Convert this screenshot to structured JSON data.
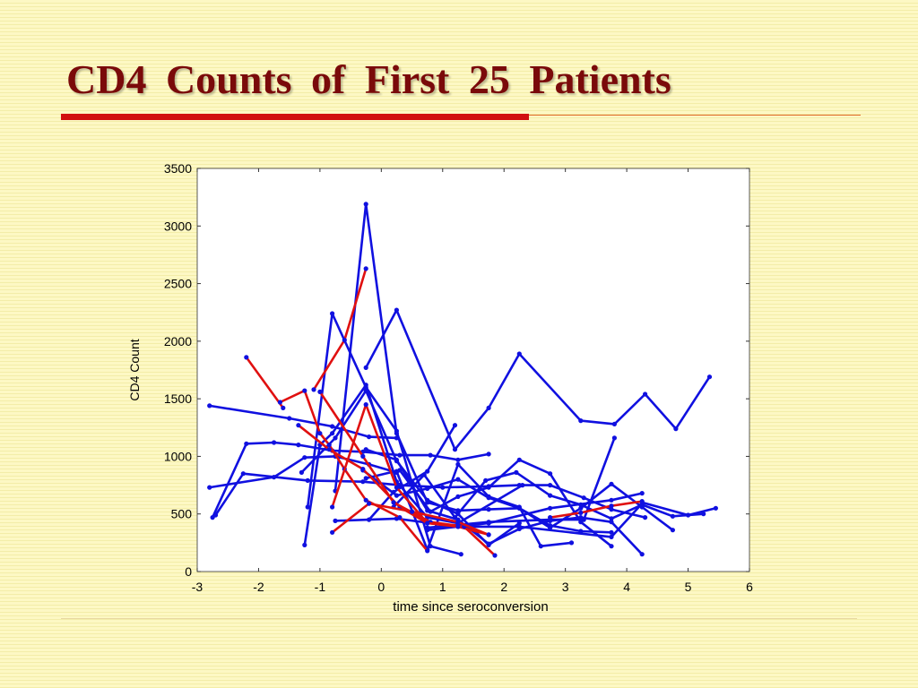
{
  "slide": {
    "title": "CD4 Counts of First 25 Patients"
  },
  "colors": {
    "title": "#7a0a0a",
    "accent_rule": "#d11010",
    "blue_series": "#1010e0",
    "red_series": "#e01010"
  },
  "chart_data": {
    "type": "line",
    "title": "",
    "xlabel": "time since seroconversion",
    "ylabel": "CD4 Count",
    "xlim": [
      -3,
      6
    ],
    "ylim": [
      0,
      3500
    ],
    "xticks": [
      "-3",
      "-2",
      "-1",
      "0",
      "1",
      "2",
      "3",
      "4",
      "5",
      "6"
    ],
    "yticks": [
      "0",
      "500",
      "1000",
      "1500",
      "2000",
      "2500",
      "3000",
      "3500"
    ],
    "grid": false,
    "legend": "none",
    "series": [
      {
        "color": "#e01010",
        "points": [
          [
            -2.2,
            1860
          ],
          [
            -1.6,
            1420
          ]
        ]
      },
      {
        "color": "#e01010",
        "points": [
          [
            -1.65,
            1470
          ],
          [
            -1.25,
            1570
          ],
          [
            -1.0,
            1200
          ],
          [
            -0.85,
            1100
          ],
          [
            -0.6,
            890
          ],
          [
            -0.25,
            620
          ],
          [
            0.3,
            470
          ],
          [
            0.75,
            180
          ]
        ]
      },
      {
        "color": "#e01010",
        "points": [
          [
            -1.35,
            1270
          ],
          [
            -0.85,
            1060
          ],
          [
            -0.3,
            890
          ],
          [
            0.3,
            560
          ],
          [
            0.75,
            420
          ],
          [
            1.25,
            390
          ],
          [
            1.75,
            320
          ]
        ]
      },
      {
        "color": "#e01010",
        "points": [
          [
            -1.0,
            1560
          ],
          [
            -0.3,
            1000
          ],
          [
            0.2,
            600
          ],
          [
            0.8,
            430
          ],
          [
            1.35,
            390
          ],
          [
            1.85,
            140
          ]
        ]
      },
      {
        "color": "#e01010",
        "points": [
          [
            -0.8,
            560
          ],
          [
            -0.25,
            1450
          ],
          [
            0.25,
            730
          ],
          [
            0.75,
            420
          ],
          [
            1.25,
            400
          ]
        ]
      },
      {
        "color": "#e01010",
        "points": [
          [
            -0.8,
            340
          ],
          [
            -0.2,
            590
          ],
          [
            0.5,
            520
          ],
          [
            1.25,
            430
          ],
          [
            1.75,
            320
          ]
        ]
      },
      {
        "color": "#e01010",
        "points": [
          [
            -1.1,
            1580
          ],
          [
            -0.6,
            2010
          ],
          [
            -0.25,
            2630
          ]
        ]
      },
      {
        "color": "#e01010",
        "points": [
          [
            2.75,
            470
          ],
          [
            3.25,
            510
          ],
          [
            3.75,
            570
          ],
          [
            4.25,
            610
          ]
        ]
      },
      {
        "color": "#1010e0",
        "points": [
          [
            -2.8,
            1440
          ],
          [
            -1.5,
            1330
          ],
          [
            -0.8,
            1260
          ],
          [
            -0.2,
            1170
          ],
          [
            0.25,
            1160
          ]
        ]
      },
      {
        "color": "#1010e0",
        "points": [
          [
            -2.75,
            470
          ],
          [
            -2.2,
            1110
          ],
          [
            -1.75,
            1120
          ],
          [
            -1.35,
            1100
          ],
          [
            -0.8,
            1050
          ],
          [
            -0.3,
            1040
          ],
          [
            0.3,
            1010
          ],
          [
            0.8,
            1010
          ],
          [
            1.25,
            970
          ],
          [
            1.75,
            1020
          ]
        ]
      },
      {
        "color": "#1010e0",
        "points": [
          [
            -2.8,
            730
          ],
          [
            -1.75,
            820
          ],
          [
            -1.25,
            990
          ],
          [
            -0.75,
            1000
          ],
          [
            -0.2,
            930
          ],
          [
            0.25,
            860
          ]
        ]
      },
      {
        "color": "#1010e0",
        "points": [
          [
            -2.7,
            490
          ],
          [
            -2.25,
            850
          ],
          [
            -1.2,
            790
          ],
          [
            -0.3,
            780
          ],
          [
            0.3,
            750
          ],
          [
            1.0,
            730
          ],
          [
            1.75,
            740
          ],
          [
            2.25,
            750
          ]
        ]
      },
      {
        "color": "#1010e0",
        "points": [
          [
            -1.2,
            560
          ],
          [
            -0.8,
            2240
          ],
          [
            -0.25,
            1600
          ],
          [
            0.25,
            1220
          ],
          [
            0.8,
            220
          ],
          [
            1.3,
            150
          ]
        ]
      },
      {
        "color": "#1010e0",
        "points": [
          [
            -1.3,
            860
          ],
          [
            -0.75,
            1160
          ],
          [
            -0.25,
            1570
          ],
          [
            0.25,
            960
          ],
          [
            0.75,
            620
          ],
          [
            1.25,
            500
          ],
          [
            1.75,
            230
          ],
          [
            2.25,
            420
          ]
        ]
      },
      {
        "color": "#1010e0",
        "points": [
          [
            -1.25,
            230
          ],
          [
            -1.0,
            1100
          ],
          [
            -0.8,
            1200
          ],
          [
            -0.25,
            1620
          ],
          [
            0.25,
            780
          ],
          [
            0.75,
            470
          ],
          [
            1.25,
            420
          ],
          [
            2.3,
            750
          ],
          [
            2.75,
            750
          ],
          [
            3.3,
            640
          ],
          [
            3.75,
            540
          ],
          [
            4.3,
            470
          ]
        ]
      },
      {
        "color": "#1010e0",
        "points": [
          [
            -0.75,
            700
          ],
          [
            -0.25,
            3190
          ],
          [
            0.25,
            1200
          ],
          [
            0.75,
            600
          ],
          [
            1.25,
            530
          ],
          [
            1.75,
            540
          ],
          [
            2.25,
            550
          ],
          [
            2.75,
            400
          ],
          [
            3.25,
            350
          ],
          [
            3.75,
            340
          ]
        ]
      },
      {
        "color": "#1010e0",
        "points": [
          [
            -0.25,
            1770
          ],
          [
            0.25,
            2270
          ],
          [
            1.2,
            1060
          ],
          [
            1.75,
            1420
          ],
          [
            2.25,
            1890
          ],
          [
            3.25,
            1310
          ],
          [
            3.8,
            1280
          ],
          [
            4.3,
            1540
          ],
          [
            4.8,
            1240
          ],
          [
            5.35,
            1690
          ]
        ]
      },
      {
        "color": "#1010e0",
        "points": [
          [
            -0.25,
            1060
          ],
          [
            0.25,
            970
          ],
          [
            0.75,
            530
          ],
          [
            1.25,
            450
          ],
          [
            1.75,
            240
          ],
          [
            2.25,
            370
          ],
          [
            2.75,
            440
          ],
          [
            3.25,
            470
          ],
          [
            3.75,
            430
          ],
          [
            4.25,
            150
          ]
        ]
      },
      {
        "color": "#1010e0",
        "points": [
          [
            -0.25,
            810
          ],
          [
            0.3,
            880
          ],
          [
            0.8,
            520
          ],
          [
            1.25,
            650
          ],
          [
            1.75,
            730
          ],
          [
            2.25,
            970
          ],
          [
            2.75,
            850
          ],
          [
            3.25,
            430
          ],
          [
            3.75,
            220
          ]
        ]
      },
      {
        "color": "#1010e0",
        "points": [
          [
            -0.3,
            880
          ],
          [
            0.25,
            660
          ],
          [
            0.75,
            720
          ],
          [
            1.25,
            800
          ],
          [
            1.75,
            640
          ],
          [
            2.25,
            550
          ],
          [
            2.75,
            380
          ],
          [
            3.25,
            550
          ],
          [
            3.75,
            760
          ],
          [
            4.25,
            560
          ],
          [
            4.75,
            360
          ]
        ]
      },
      {
        "color": "#1010e0",
        "points": [
          [
            -0.2,
            450
          ],
          [
            0.2,
            690
          ],
          [
            0.75,
            870
          ],
          [
            1.2,
            1270
          ]
        ]
      },
      {
        "color": "#1010e0",
        "points": [
          [
            0.2,
            560
          ],
          [
            0.7,
            840
          ],
          [
            1.2,
            470
          ],
          [
            1.7,
            790
          ],
          [
            2.2,
            860
          ],
          [
            2.75,
            660
          ],
          [
            3.25,
            580
          ],
          [
            3.75,
            460
          ],
          [
            4.25,
            580
          ],
          [
            4.75,
            480
          ],
          [
            5.25,
            500
          ]
        ]
      },
      {
        "color": "#1010e0",
        "points": [
          [
            0.25,
            870
          ],
          [
            0.75,
            190
          ],
          [
            1.25,
            930
          ],
          [
            1.75,
            650
          ],
          [
            2.25,
            560
          ],
          [
            2.6,
            220
          ],
          [
            3.1,
            250
          ]
        ]
      },
      {
        "color": "#1010e0",
        "points": [
          [
            0.75,
            360
          ],
          [
            1.75,
            420
          ],
          [
            2.75,
            550
          ],
          [
            3.75,
            620
          ],
          [
            4.25,
            680
          ]
        ]
      },
      {
        "color": "#1010e0",
        "points": [
          [
            0.75,
            380
          ],
          [
            1.75,
            430
          ],
          [
            2.75,
            450
          ],
          [
            3.3,
            450
          ],
          [
            3.8,
            1160
          ]
        ]
      },
      {
        "color": "#1010e0",
        "points": [
          [
            4.25,
            600
          ],
          [
            5.0,
            490
          ],
          [
            5.45,
            550
          ]
        ]
      },
      {
        "color": "#1010e0",
        "points": [
          [
            -0.75,
            440
          ],
          [
            0.25,
            460
          ],
          [
            1.25,
            390
          ],
          [
            2.25,
            390
          ],
          [
            3.75,
            300
          ],
          [
            4.25,
            590
          ]
        ]
      }
    ]
  }
}
